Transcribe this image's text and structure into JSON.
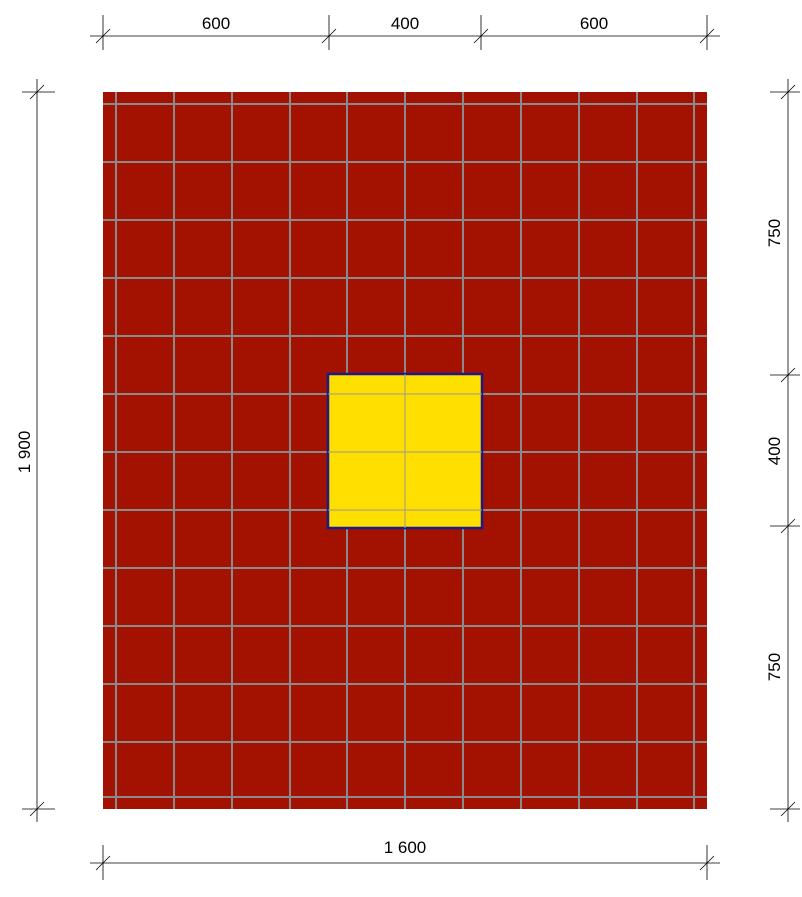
{
  "drawing": {
    "colors": {
      "slab": "#a31100",
      "column": "#ffdf00",
      "column_outline": "#1a1a8c",
      "grid": "#8a8a8a",
      "background": "#ffffff"
    },
    "top_dimensions": {
      "left": "600",
      "middle": "400",
      "right": "600"
    },
    "bottom_dimension": "1 600",
    "left_dimension": "1 900",
    "right_dimensions": {
      "top": "750",
      "middle": "400",
      "bottom": "750"
    }
  }
}
